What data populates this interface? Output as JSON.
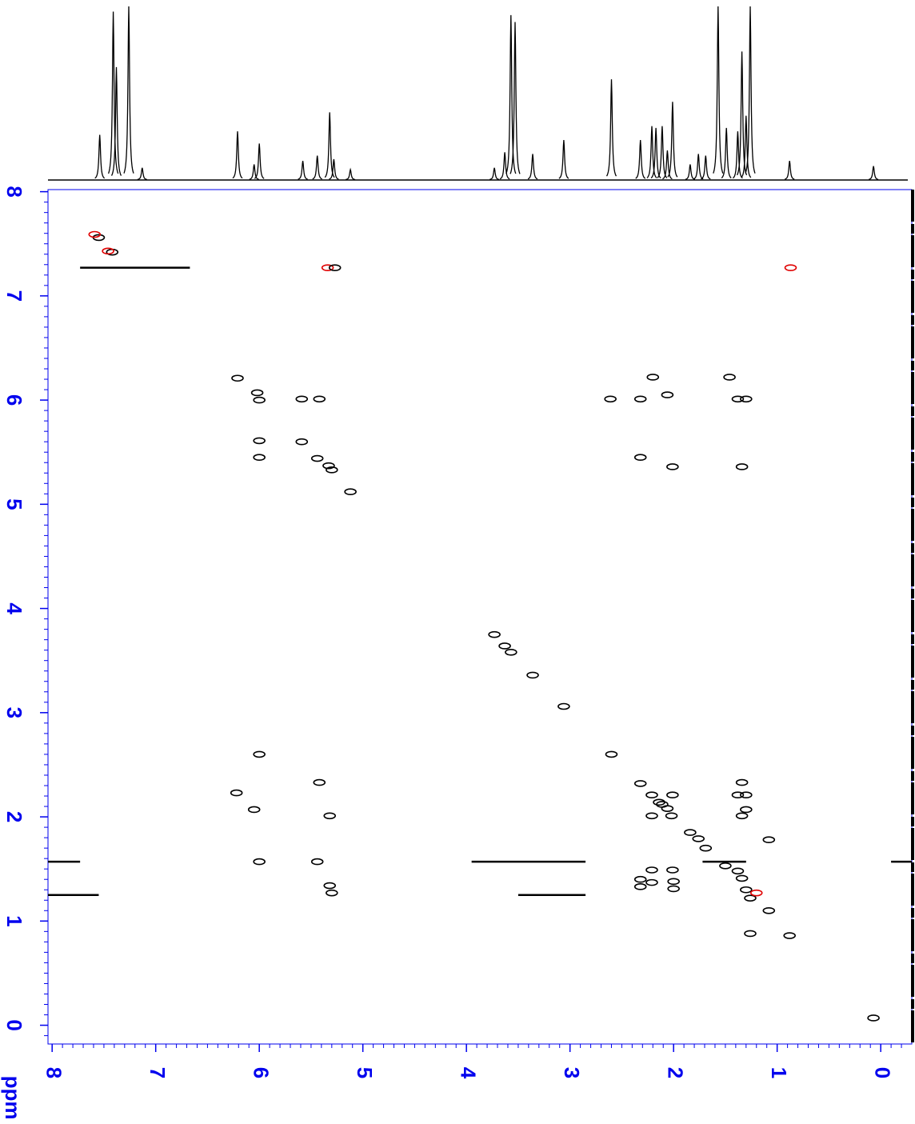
{
  "chart_data": {
    "type": "nmr2d",
    "x_label": "ppm",
    "xlim": [
      8.04,
      -0.3
    ],
    "ylim": [
      8.02,
      -0.18
    ],
    "xticks": [
      8,
      7,
      6,
      5,
      4,
      3,
      2,
      1,
      0
    ],
    "yticks": [
      8,
      7,
      6,
      5,
      4,
      3,
      2,
      1,
      0
    ],
    "minor_tick_step": 0.1,
    "axis_color": "#0000ee",
    "trace": {
      "color": "#000000",
      "ylim": [
        0,
        100
      ],
      "x": [
        7.54,
        7.41,
        7.38,
        7.26,
        7.13,
        6.21,
        6.05,
        6.0,
        5.58,
        5.44,
        5.32,
        5.28,
        5.12,
        3.73,
        3.63,
        3.57,
        3.53,
        3.36,
        3.06,
        2.6,
        2.32,
        2.21,
        2.17,
        2.11,
        2.06,
        2.01,
        1.84,
        1.76,
        1.69,
        1.57,
        1.49,
        1.38,
        1.34,
        1.3,
        1.26,
        0.88,
        0.07
      ],
      "values": [
        26,
        97,
        65,
        100,
        7,
        28,
        9,
        21,
        11,
        14,
        39,
        12,
        6,
        7,
        16,
        95,
        91,
        15,
        23,
        58,
        23,
        31,
        30,
        31,
        17,
        45,
        9,
        15,
        14,
        100,
        30,
        28,
        74,
        37,
        100,
        11,
        8
      ]
    },
    "peaks": {
      "x": [
        7.55,
        7.42,
        6.21,
        6.02,
        6.0,
        5.59,
        5.44,
        5.33,
        5.3,
        5.12,
        3.73,
        3.63,
        3.57,
        3.36,
        3.06,
        2.6,
        2.32,
        2.21,
        2.11,
        2.02,
        1.84,
        1.76,
        1.69,
        1.5,
        1.34,
        1.3,
        1.26,
        0.88,
        0.07,
        6.0,
        5.59,
        5.42,
        6.0,
        2.2,
        1.46,
        2.61,
        2.32,
        2.06,
        1.38,
        1.3,
        2.32,
        2.01,
        1.34,
        6.0,
        5.42,
        6.22,
        6.05,
        5.32,
        6.0,
        5.44,
        5.32,
        5.3,
        1.34,
        1.38,
        1.3,
        2.01,
        1.3,
        1.34,
        2.21,
        2.06,
        2.14,
        2.21,
        2.01,
        2.32,
        2.21,
        2.0,
        2.32,
        2.0,
        1.08,
        1.08,
        1.26,
        1.38,
        1.2,
        5.34,
        5.27,
        0.87,
        7.59,
        7.46
      ],
      "y": [
        7.56,
        7.42,
        6.21,
        6.07,
        6.0,
        5.6,
        5.44,
        5.37,
        5.33,
        5.12,
        3.75,
        3.64,
        3.58,
        3.36,
        3.06,
        2.6,
        2.32,
        2.21,
        2.12,
        2.01,
        1.85,
        1.79,
        1.7,
        1.53,
        1.41,
        1.3,
        1.22,
        0.86,
        0.07,
        5.45,
        6.01,
        6.01,
        5.61,
        6.22,
        6.22,
        6.01,
        6.01,
        6.05,
        6.01,
        6.01,
        5.45,
        5.36,
        5.36,
        2.6,
        2.33,
        2.23,
        2.07,
        2.01,
        1.57,
        1.57,
        1.34,
        1.27,
        2.33,
        2.21,
        2.21,
        2.21,
        2.07,
        2.01,
        2.01,
        2.08,
        2.14,
        1.49,
        1.49,
        1.4,
        1.37,
        1.38,
        1.33,
        1.31,
        1.78,
        1.1,
        0.88,
        1.48,
        1.27,
        7.27,
        7.27,
        7.27,
        7.59,
        7.43
      ],
      "colors": [
        "#000000",
        "#000000",
        "#000000",
        "#000000",
        "#000000",
        "#000000",
        "#000000",
        "#000000",
        "#000000",
        "#000000",
        "#000000",
        "#000000",
        "#000000",
        "#000000",
        "#000000",
        "#000000",
        "#000000",
        "#000000",
        "#000000",
        "#000000",
        "#000000",
        "#000000",
        "#000000",
        "#000000",
        "#000000",
        "#000000",
        "#000000",
        "#000000",
        "#000000",
        "#000000",
        "#000000",
        "#000000",
        "#000000",
        "#000000",
        "#000000",
        "#000000",
        "#000000",
        "#000000",
        "#000000",
        "#000000",
        "#000000",
        "#000000",
        "#000000",
        "#000000",
        "#000000",
        "#000000",
        "#000000",
        "#000000",
        "#000000",
        "#000000",
        "#000000",
        "#000000",
        "#000000",
        "#000000",
        "#000000",
        "#000000",
        "#000000",
        "#000000",
        "#000000",
        "#000000",
        "#000000",
        "#000000",
        "#000000",
        "#000000",
        "#000000",
        "#000000",
        "#000000",
        "#000000",
        "#000000",
        "#000000",
        "#000000",
        "#000000",
        "#e00000",
        "#e00000",
        "#000000",
        "#e00000",
        "#e00000",
        "#e00000"
      ]
    },
    "ridges": {
      "x_start": [
        7.73,
        8.04,
        3.95,
        1.72,
        -0.1,
        8.04,
        3.5
      ],
      "x_end": [
        6.67,
        7.73,
        2.85,
        1.3,
        -0.3,
        7.55,
        2.85
      ],
      "y": [
        7.27,
        1.57,
        1.57,
        1.57,
        1.57,
        1.25,
        1.25
      ]
    }
  }
}
